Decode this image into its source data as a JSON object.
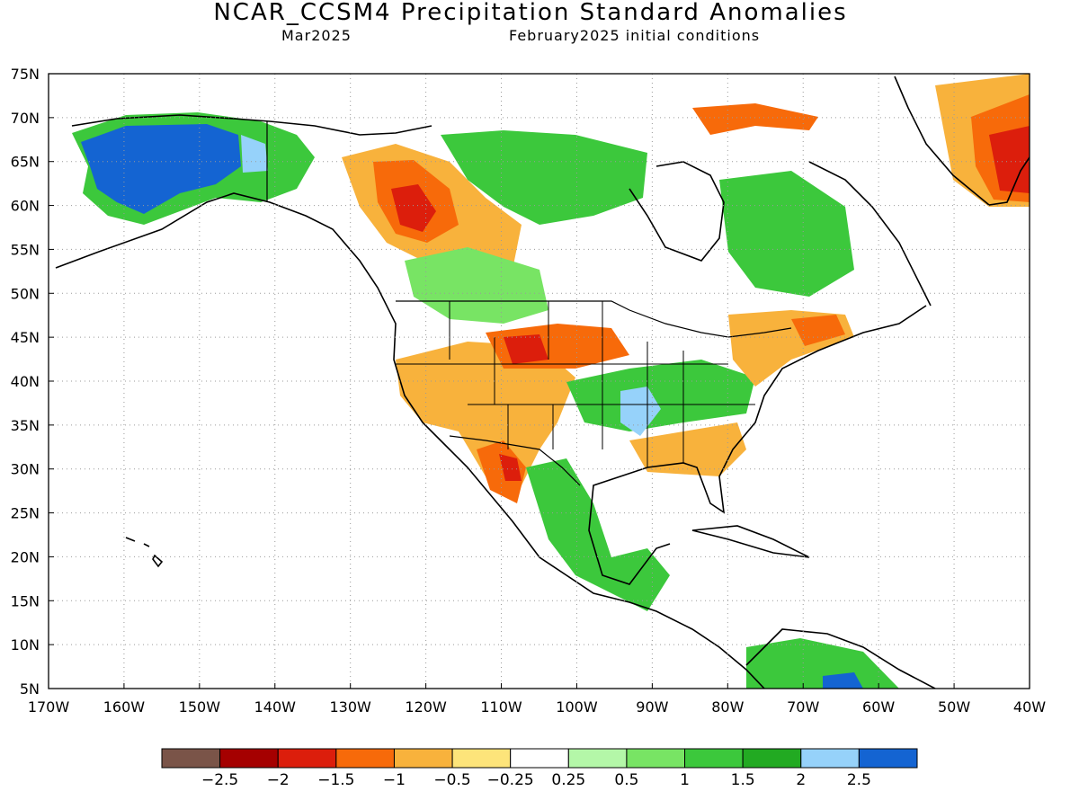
{
  "header": {
    "title": "NCAR_CCSM4 Precipitation Standard Anomalies",
    "valid_month": "Mar2025",
    "init": "February2025 initial conditions"
  },
  "map": {
    "lon_range": [
      -170,
      -40
    ],
    "lat_range": [
      5,
      75
    ],
    "lon_ticks": [
      {
        "v": -170,
        "label": "170W"
      },
      {
        "v": -160,
        "label": "160W"
      },
      {
        "v": -150,
        "label": "150W"
      },
      {
        "v": -140,
        "label": "140W"
      },
      {
        "v": -130,
        "label": "130W"
      },
      {
        "v": -120,
        "label": "120W"
      },
      {
        "v": -110,
        "label": "110W"
      },
      {
        "v": -100,
        "label": "100W"
      },
      {
        "v": -90,
        "label": "90W"
      },
      {
        "v": -80,
        "label": "80W"
      },
      {
        "v": -70,
        "label": "70W"
      },
      {
        "v": -60,
        "label": "60W"
      },
      {
        "v": -50,
        "label": "50W"
      },
      {
        "v": -40,
        "label": "40W"
      }
    ],
    "lat_ticks": [
      {
        "v": 5,
        "label": "5N"
      },
      {
        "v": 10,
        "label": "10N"
      },
      {
        "v": 15,
        "label": "15N"
      },
      {
        "v": 20,
        "label": "20N"
      },
      {
        "v": 25,
        "label": "25N"
      },
      {
        "v": 30,
        "label": "30N"
      },
      {
        "v": 35,
        "label": "35N"
      },
      {
        "v": 40,
        "label": "40N"
      },
      {
        "v": 45,
        "label": "45N"
      },
      {
        "v": 50,
        "label": "50N"
      },
      {
        "v": 55,
        "label": "55N"
      },
      {
        "v": 60,
        "label": "60N"
      },
      {
        "v": 65,
        "label": "65N"
      },
      {
        "v": 70,
        "label": "70N"
      },
      {
        "v": 75,
        "label": "75N"
      }
    ],
    "grid": "dotted"
  },
  "legend": {
    "colors": [
      "#7a5448",
      "#a50000",
      "#dc1e0c",
      "#f76a0a",
      "#f8b23c",
      "#fde47a",
      "#ffffff",
      "#b4f7a8",
      "#78e464",
      "#3cc83c",
      "#22aa22",
      "#96d2fa",
      "#1464d2"
    ],
    "labels": [
      "-2.5",
      "-2",
      "-1.5",
      "-1",
      "-0.5",
      "-0.25",
      "0.25",
      "0.5",
      "1",
      "1.5",
      "2",
      "2.5"
    ]
  },
  "colors": {
    "land_outline": "#000000",
    "wet_strong": "#1464d2",
    "wet": "#3cc83c",
    "dry": "#f8b23c",
    "dry_strong": "#dc1e0c"
  }
}
